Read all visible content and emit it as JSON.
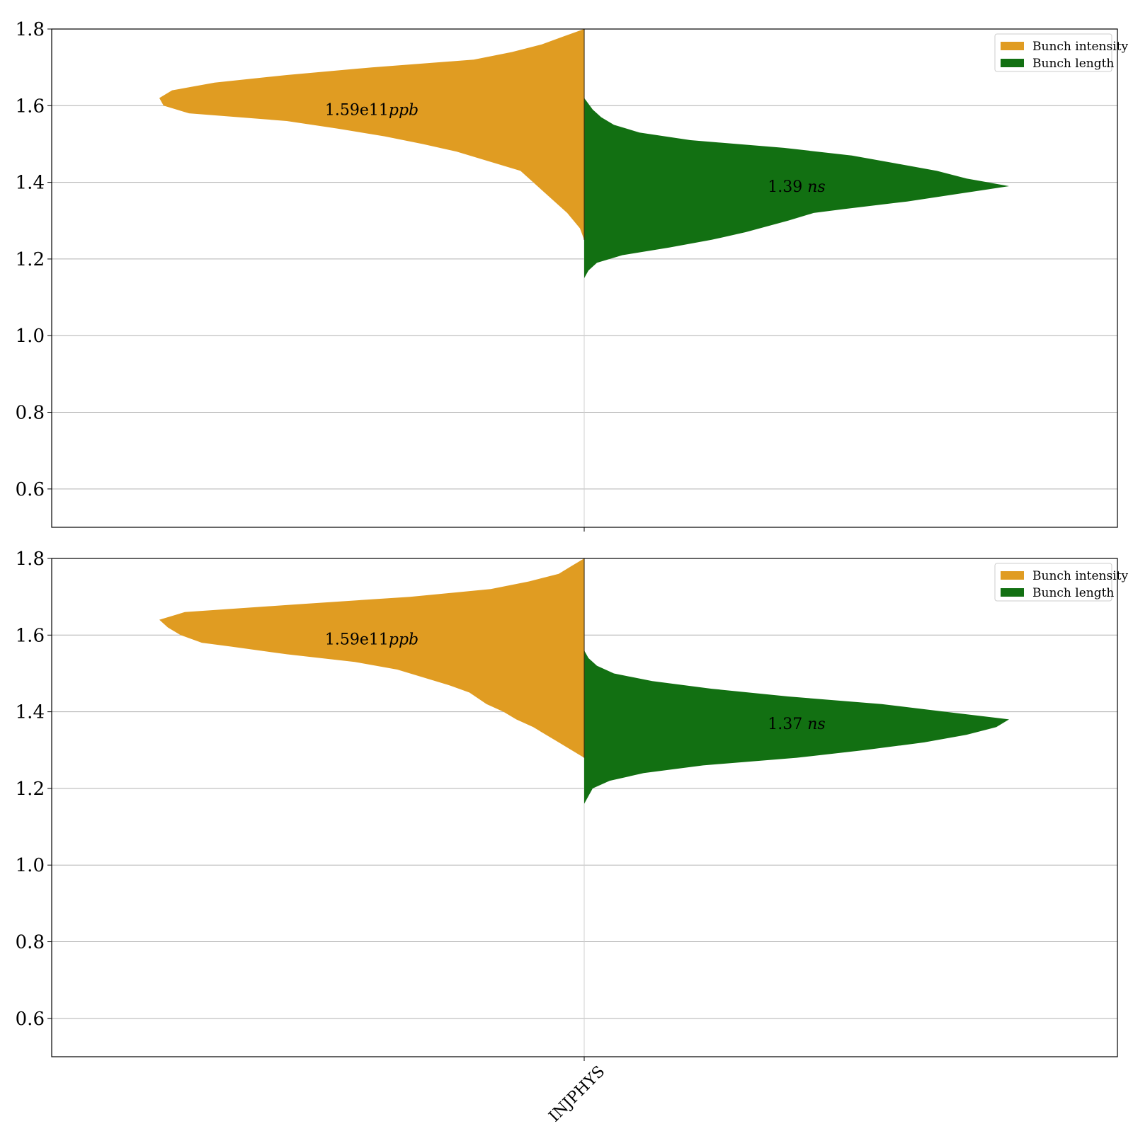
{
  "colors": {
    "intensity": "#e09c22",
    "length": "#127012",
    "grid": "#b0b0b0",
    "axis": "#000000"
  },
  "chart_data": [
    {
      "type": "violin",
      "category": "INJPHYS",
      "ylim": [
        0.5,
        1.8
      ],
      "yticks": [
        0.6,
        0.8,
        1.0,
        1.2,
        1.4,
        1.6,
        1.8
      ],
      "ytick_labels": [
        "0.6",
        "0.8",
        "1.0",
        "1.2",
        "1.4",
        "1.6",
        "1.8"
      ],
      "grid": true,
      "legend_position": "top-right",
      "series": [
        {
          "name": "Bunch intensity",
          "side": "left",
          "annotation_value": "1.59",
          "annotation_exp": "e11",
          "annotation_unit": "ppb",
          "annotation_y": 1.59,
          "profile": [
            [
              1.25,
              0.0
            ],
            [
              1.28,
              0.01
            ],
            [
              1.32,
              0.04
            ],
            [
              1.36,
              0.08
            ],
            [
              1.4,
              0.12
            ],
            [
              1.43,
              0.15
            ],
            [
              1.46,
              0.24
            ],
            [
              1.48,
              0.3
            ],
            [
              1.5,
              0.38
            ],
            [
              1.52,
              0.47
            ],
            [
              1.54,
              0.58
            ],
            [
              1.56,
              0.7
            ],
            [
              1.58,
              0.93
            ],
            [
              1.6,
              0.99
            ],
            [
              1.62,
              1.0
            ],
            [
              1.64,
              0.97
            ],
            [
              1.66,
              0.87
            ],
            [
              1.68,
              0.7
            ],
            [
              1.7,
              0.5
            ],
            [
              1.72,
              0.26
            ],
            [
              1.74,
              0.17
            ],
            [
              1.76,
              0.1
            ],
            [
              1.78,
              0.05
            ],
            [
              1.8,
              0.0
            ]
          ]
        },
        {
          "name": "Bunch length",
          "side": "right",
          "annotation_value": "1.39",
          "annotation_unit": "ns",
          "annotation_y": 1.39,
          "profile": [
            [
              1.15,
              0.0
            ],
            [
              1.17,
              0.01
            ],
            [
              1.19,
              0.03
            ],
            [
              1.21,
              0.09
            ],
            [
              1.23,
              0.2
            ],
            [
              1.25,
              0.3
            ],
            [
              1.27,
              0.38
            ],
            [
              1.3,
              0.48
            ],
            [
              1.32,
              0.54
            ],
            [
              1.33,
              0.61
            ],
            [
              1.35,
              0.76
            ],
            [
              1.37,
              0.88
            ],
            [
              1.39,
              1.0
            ],
            [
              1.41,
              0.9
            ],
            [
              1.43,
              0.83
            ],
            [
              1.45,
              0.73
            ],
            [
              1.47,
              0.63
            ],
            [
              1.49,
              0.47
            ],
            [
              1.51,
              0.25
            ],
            [
              1.53,
              0.13
            ],
            [
              1.55,
              0.07
            ],
            [
              1.57,
              0.04
            ],
            [
              1.59,
              0.02
            ],
            [
              1.62,
              0.0
            ]
          ]
        }
      ]
    },
    {
      "type": "violin",
      "category": "INJPHYS",
      "ylim": [
        0.5,
        1.8
      ],
      "yticks": [
        0.6,
        0.8,
        1.0,
        1.2,
        1.4,
        1.6,
        1.8
      ],
      "ytick_labels": [
        "0.6",
        "0.8",
        "1.0",
        "1.2",
        "1.4",
        "1.6",
        "1.8"
      ],
      "grid": true,
      "legend_position": "top-right",
      "series": [
        {
          "name": "Bunch intensity",
          "side": "left",
          "annotation_value": "1.59",
          "annotation_exp": "e11",
          "annotation_unit": "ppb",
          "annotation_y": 1.59,
          "profile": [
            [
              1.28,
              0.0
            ],
            [
              1.3,
              0.03
            ],
            [
              1.32,
              0.06
            ],
            [
              1.34,
              0.09
            ],
            [
              1.36,
              0.12
            ],
            [
              1.38,
              0.16
            ],
            [
              1.4,
              0.19
            ],
            [
              1.42,
              0.23
            ],
            [
              1.45,
              0.27
            ],
            [
              1.47,
              0.32
            ],
            [
              1.49,
              0.38
            ],
            [
              1.51,
              0.44
            ],
            [
              1.53,
              0.54
            ],
            [
              1.55,
              0.7
            ],
            [
              1.57,
              0.83
            ],
            [
              1.58,
              0.9
            ],
            [
              1.6,
              0.95
            ],
            [
              1.62,
              0.98
            ],
            [
              1.64,
              1.0
            ],
            [
              1.66,
              0.94
            ],
            [
              1.68,
              0.68
            ],
            [
              1.7,
              0.41
            ],
            [
              1.72,
              0.22
            ],
            [
              1.74,
              0.13
            ],
            [
              1.76,
              0.06
            ],
            [
              1.78,
              0.03
            ],
            [
              1.8,
              0.0
            ]
          ]
        },
        {
          "name": "Bunch length",
          "side": "right",
          "annotation_value": "1.37",
          "annotation_unit": "ns",
          "annotation_y": 1.37,
          "profile": [
            [
              1.16,
              0.0
            ],
            [
              1.18,
              0.01
            ],
            [
              1.2,
              0.02
            ],
            [
              1.22,
              0.06
            ],
            [
              1.24,
              0.14
            ],
            [
              1.26,
              0.28
            ],
            [
              1.28,
              0.5
            ],
            [
              1.3,
              0.66
            ],
            [
              1.32,
              0.8
            ],
            [
              1.34,
              0.9
            ],
            [
              1.36,
              0.97
            ],
            [
              1.38,
              1.0
            ],
            [
              1.4,
              0.85
            ],
            [
              1.42,
              0.7
            ],
            [
              1.44,
              0.48
            ],
            [
              1.46,
              0.3
            ],
            [
              1.48,
              0.16
            ],
            [
              1.5,
              0.07
            ],
            [
              1.52,
              0.03
            ],
            [
              1.54,
              0.01
            ],
            [
              1.56,
              0.0
            ]
          ]
        }
      ]
    }
  ]
}
